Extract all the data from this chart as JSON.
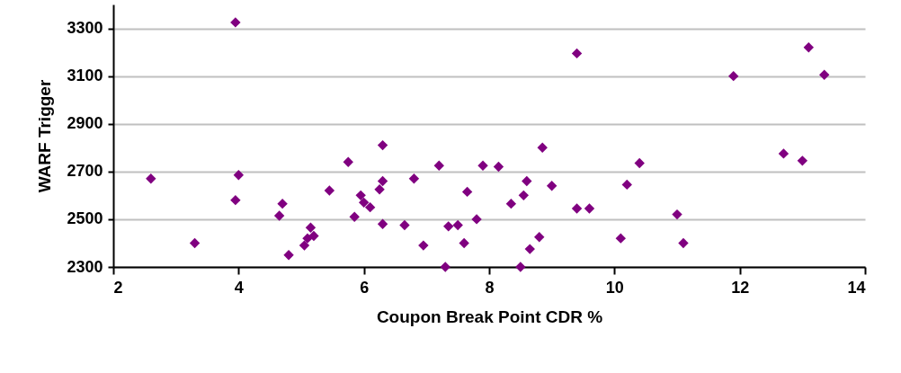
{
  "chart_data": {
    "type": "scatter",
    "xlabel": "Coupon Break Point CDR %",
    "ylabel": "WARF Trigger",
    "x": [
      2.6,
      3.3,
      3.95,
      4.0,
      3.95,
      4.65,
      4.7,
      4.8,
      5.05,
      5.1,
      5.15,
      5.2,
      5.45,
      5.75,
      5.85,
      5.95,
      6.0,
      6.1,
      6.25,
      6.3,
      6.3,
      6.3,
      6.65,
      6.8,
      6.95,
      7.2,
      7.3,
      7.35,
      7.5,
      7.6,
      7.65,
      7.8,
      7.9,
      8.15,
      8.35,
      8.5,
      8.55,
      8.6,
      8.65,
      8.8,
      8.85,
      9.0,
      9.4,
      9.4,
      9.6,
      10.1,
      10.2,
      10.4,
      11.0,
      11.1,
      11.9,
      12.7,
      13.0,
      13.1,
      13.35
    ],
    "series": [
      {
        "color": "#800080",
        "values": [
          2670,
          2400,
          3325,
          2685,
          2580,
          2515,
          2565,
          2350,
          2390,
          2420,
          2465,
          2430,
          2620,
          2740,
          2510,
          2600,
          2570,
          2550,
          2625,
          2660,
          2810,
          2480,
          2475,
          2670,
          2390,
          2725,
          2300,
          2470,
          2475,
          2400,
          2615,
          2500,
          2725,
          2720,
          2565,
          2300,
          2600,
          2660,
          2375,
          2425,
          2800,
          2640,
          2545,
          3195,
          2545,
          2420,
          2645,
          2735,
          2520,
          2400,
          3100,
          2775,
          2745,
          3220,
          3105
        ]
      }
    ],
    "xlim": [
      2,
      14
    ],
    "xticks": [
      2,
      4,
      6,
      8,
      10,
      12,
      14
    ],
    "ylim": [
      2300,
      3400
    ],
    "yticks": [
      2300,
      2500,
      2700,
      2900,
      3100,
      3300
    ],
    "grid": "y",
    "marker": "diamond",
    "legend": false
  }
}
